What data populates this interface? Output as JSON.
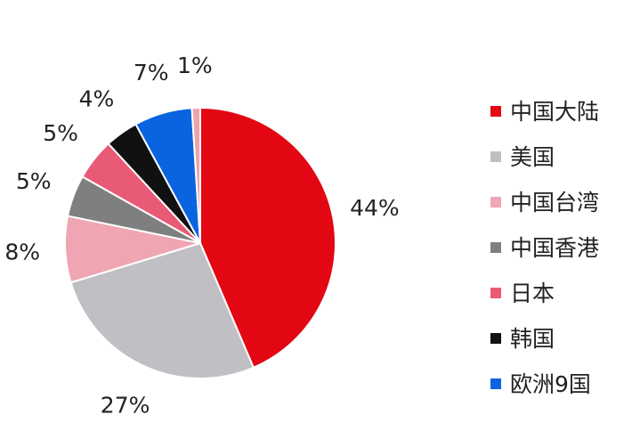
{
  "chart_data": {
    "type": "pie",
    "title": "",
    "legend_position": "right",
    "series": [
      {
        "name": "中国大陆",
        "value": 44,
        "label": "44%",
        "color": "#e30613"
      },
      {
        "name": "美国",
        "value": 27,
        "label": "27%",
        "color": "#c0c0c4"
      },
      {
        "name": "中国台湾",
        "value": 8,
        "label": "8%",
        "color": "#f0a5b2"
      },
      {
        "name": "中国香港",
        "value": 5,
        "label": "5%",
        "color": "#7f7f7f"
      },
      {
        "name": "日本",
        "value": 5,
        "label": "5%",
        "color": "#e95a77"
      },
      {
        "name": "韩国",
        "value": 4,
        "label": "4%",
        "color": "#111111"
      },
      {
        "name": "欧洲9国",
        "value": 7,
        "label": "7%",
        "color": "#0a64e0"
      },
      {
        "name": "",
        "value": 1,
        "label": "1%",
        "color": "#eea3aa"
      }
    ]
  }
}
